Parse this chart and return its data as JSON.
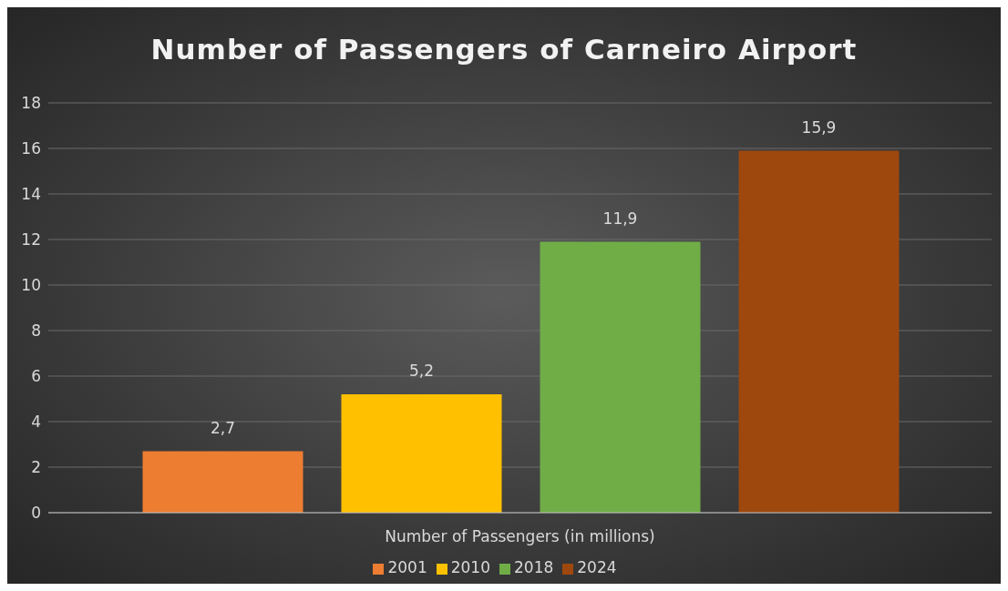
{
  "chart_data": {
    "type": "bar",
    "title": "Number of Passengers of Carneiro Airport",
    "categories": [
      "Number of Passengers (in millions)"
    ],
    "series": [
      {
        "name": "2001",
        "color": "#ed7d31",
        "values": [
          2.7
        ],
        "value_labels": [
          "2,7"
        ]
      },
      {
        "name": "2010",
        "color": "#ffc000",
        "values": [
          5.2
        ],
        "value_labels": [
          "5,2"
        ]
      },
      {
        "name": "2018",
        "color": "#70ad47",
        "values": [
          11.9
        ],
        "value_labels": [
          "11,9"
        ]
      },
      {
        "name": "2024",
        "color": "#9e480e",
        "values": [
          15.9
        ],
        "value_labels": [
          "15,9"
        ]
      }
    ],
    "ylim": [
      0,
      18
    ],
    "yticks": [
      0,
      2,
      4,
      6,
      8,
      10,
      12,
      14,
      16,
      18
    ],
    "grid": "y",
    "legend": "bottom"
  }
}
